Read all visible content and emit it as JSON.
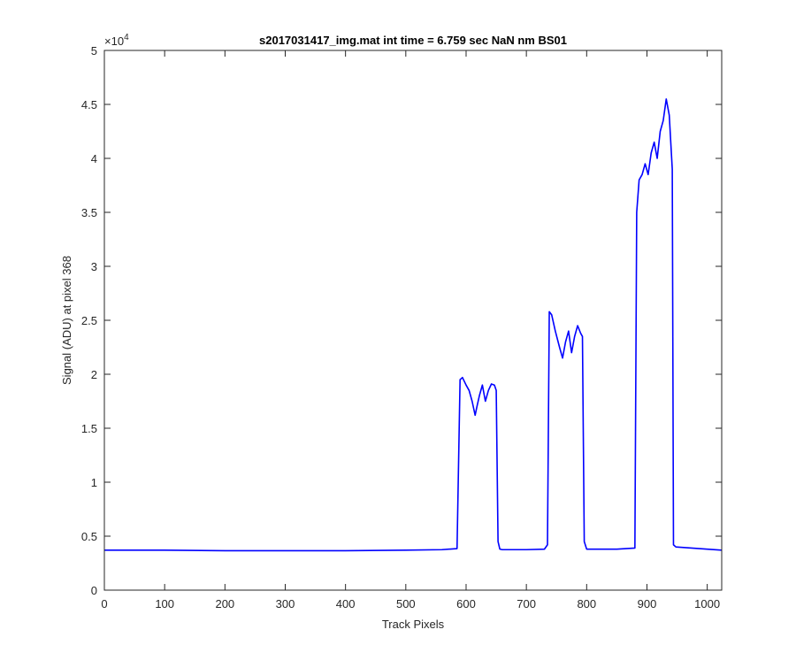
{
  "chart_data": {
    "type": "line",
    "title": "s2017031417_img.mat int time = 6.759 sec  NaN nm BS01",
    "xlabel": "Track Pixels",
    "ylabel": "Signal (ADU) at pixel 368",
    "xlim": [
      0,
      1024
    ],
    "ylim": [
      0,
      50000
    ],
    "x_ticks": [
      0,
      100,
      200,
      300,
      400,
      500,
      600,
      700,
      800,
      900,
      1000
    ],
    "y_ticks": [
      0,
      5000,
      10000,
      15000,
      20000,
      25000,
      30000,
      35000,
      40000,
      45000,
      50000
    ],
    "x_tick_labels": [
      "0",
      "100",
      "200",
      "300",
      "400",
      "500",
      "600",
      "700",
      "800",
      "900",
      "1000"
    ],
    "y_tick_labels": [
      "0",
      "0.5",
      "1",
      "1.5",
      "2",
      "2.5",
      "3",
      "3.5",
      "4",
      "4.5",
      "5"
    ],
    "y_exponent_base": "×10",
    "y_exponent_power": "4",
    "grid": false,
    "line_color": "#0000ff",
    "series": [
      {
        "x": [
          0,
          100,
          200,
          300,
          400,
          500,
          560,
          585,
          590,
          594,
          600,
          605,
          610,
          615,
          618,
          622,
          627,
          632,
          637,
          642,
          647,
          650,
          653,
          656,
          660,
          700,
          730,
          735,
          738,
          742,
          748,
          755,
          760,
          765,
          770,
          775,
          780,
          785,
          790,
          793,
          796,
          800,
          850,
          880,
          883,
          887,
          892,
          897,
          902,
          907,
          912,
          917,
          922,
          927,
          932,
          937,
          940,
          942,
          944,
          948,
          1000,
          1024
        ],
        "y": [
          3700,
          3700,
          3650,
          3650,
          3650,
          3700,
          3750,
          3850,
          19500,
          19700,
          19000,
          18500,
          17500,
          16200,
          17000,
          18000,
          19000,
          17500,
          18500,
          19100,
          19000,
          18500,
          4500,
          3800,
          3750,
          3750,
          3800,
          4200,
          25800,
          25500,
          24000,
          22500,
          21500,
          23000,
          24000,
          22000,
          23500,
          24500,
          23800,
          23500,
          4500,
          3800,
          3800,
          3900,
          35000,
          38000,
          38500,
          39500,
          38500,
          40500,
          41500,
          40000,
          42500,
          43500,
          45500,
          44000,
          41000,
          39000,
          4200,
          4000,
          3800,
          3700
        ]
      }
    ]
  }
}
